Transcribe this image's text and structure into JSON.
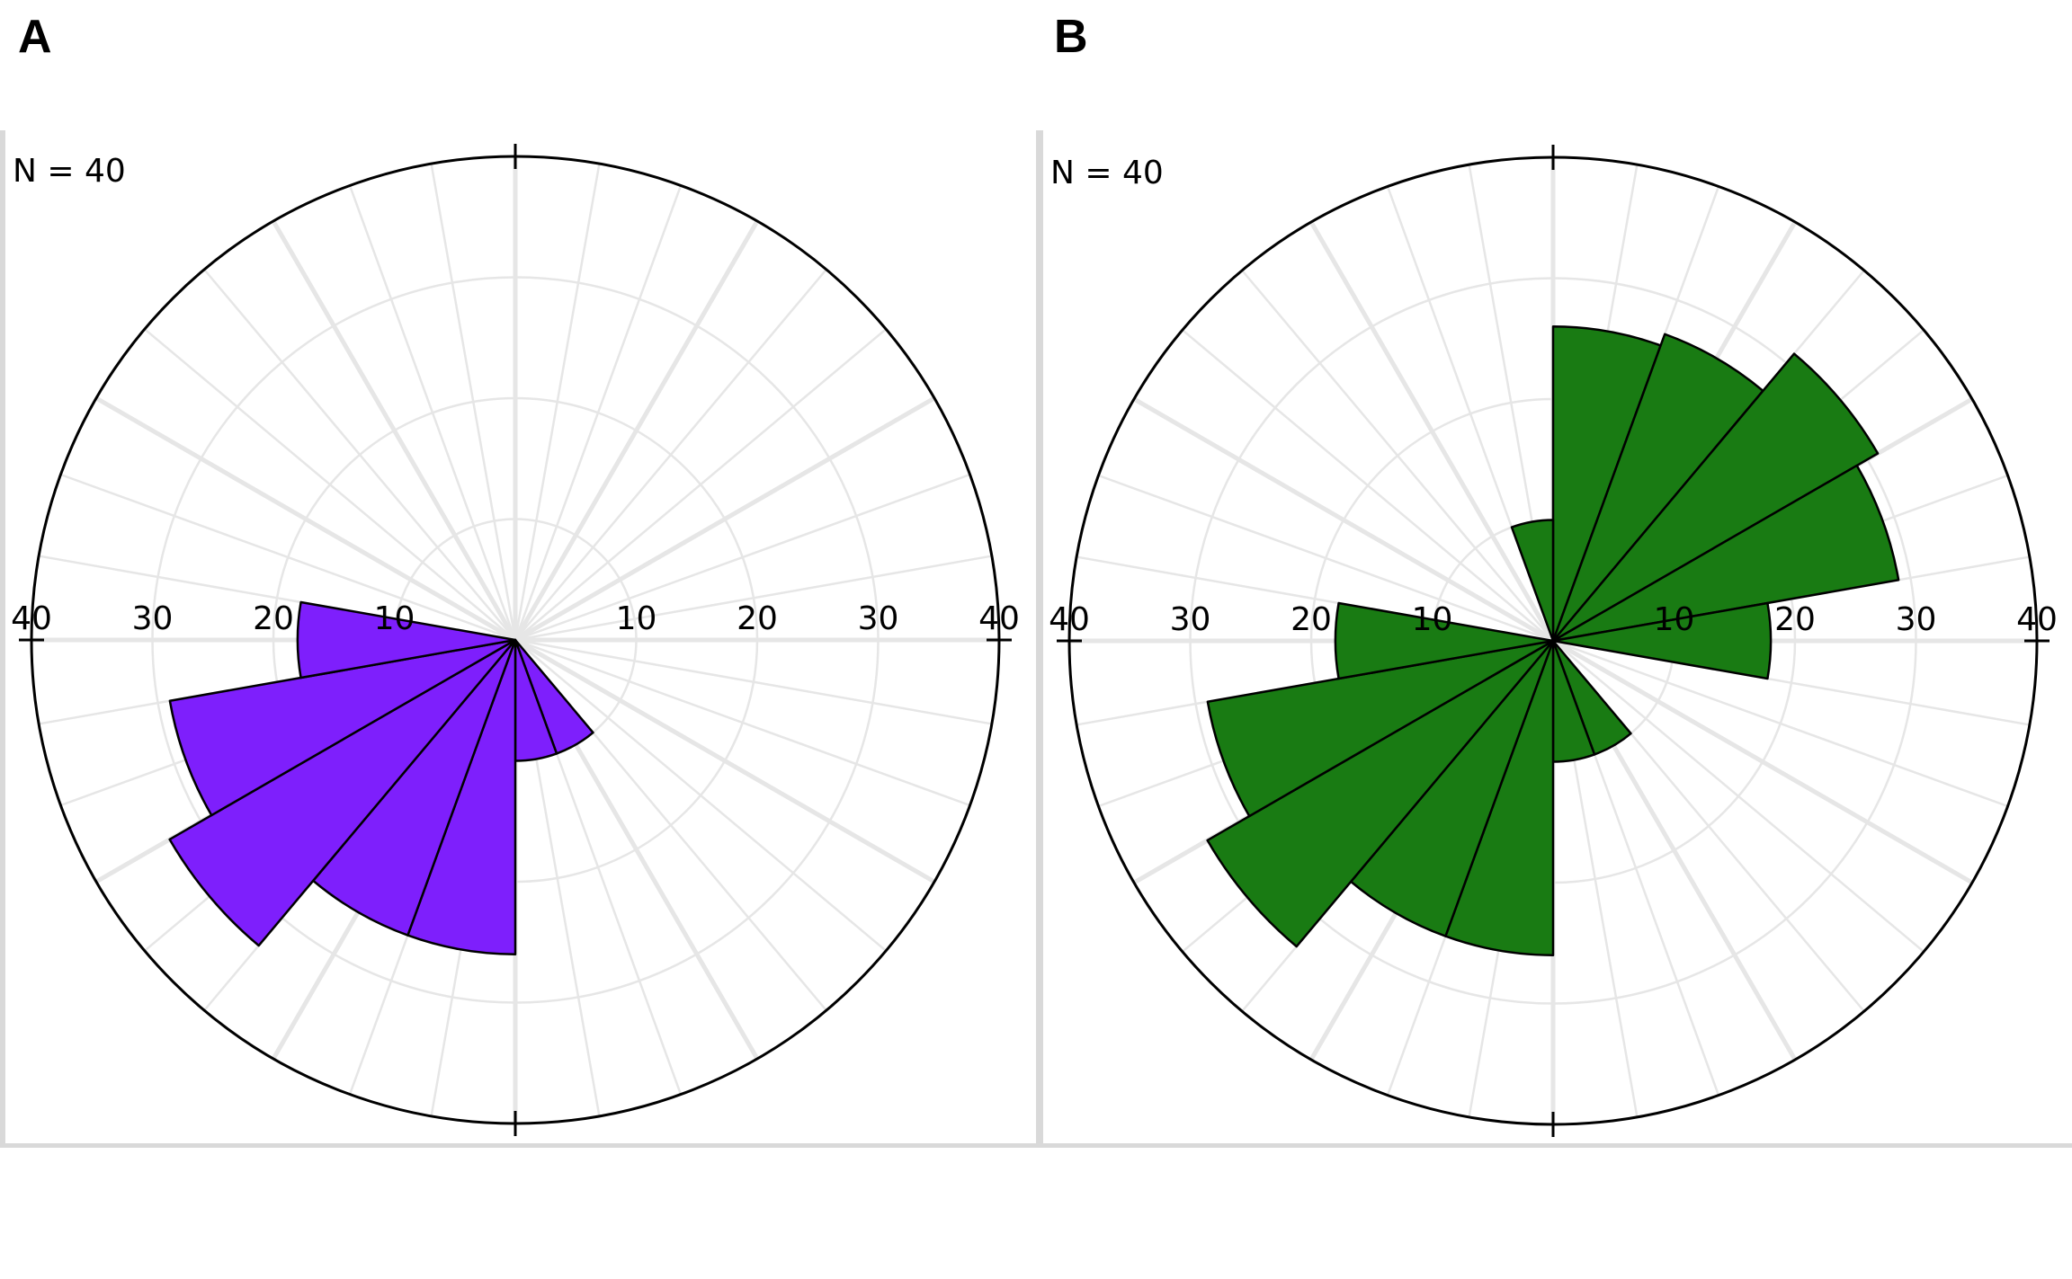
{
  "chart_data": [
    {
      "panel_label": "A",
      "type": "rose",
      "n_label": "N = 40",
      "r_ticks": [
        10,
        20,
        30,
        40
      ],
      "r_tick_labels": [
        "10",
        "20",
        "30",
        "40"
      ],
      "r_max": 40,
      "bin_width_deg": 20,
      "bin_start_deg": [
        0,
        20,
        40,
        60,
        80,
        100,
        120,
        140,
        160,
        180,
        200,
        220,
        240,
        260,
        280,
        300,
        320,
        340
      ],
      "values": [
        0,
        0,
        0,
        0,
        0,
        0,
        0,
        10,
        10,
        26,
        26,
        33,
        29,
        18,
        0,
        0,
        0,
        0
      ],
      "fill_color": "#7e1ffc",
      "edge_color": "#000000",
      "grid": true,
      "orientation": "clockwise from north"
    },
    {
      "panel_label": "B",
      "type": "rose",
      "n_label": "N = 40",
      "r_ticks": [
        10,
        20,
        30,
        40
      ],
      "r_tick_labels": [
        "10",
        "20",
        "30",
        "40"
      ],
      "r_max": 40,
      "bin_width_deg": 20,
      "bin_start_deg": [
        0,
        20,
        40,
        60,
        80,
        100,
        120,
        140,
        160,
        180,
        200,
        220,
        240,
        260,
        280,
        300,
        320,
        340
      ],
      "values": [
        26,
        27,
        31,
        29,
        18,
        0,
        0,
        10,
        10,
        26,
        26,
        33,
        29,
        18,
        0,
        0,
        0,
        10
      ],
      "fill_color": "#197b13",
      "edge_color": "#000000",
      "grid": true,
      "orientation": "clockwise from north"
    }
  ]
}
